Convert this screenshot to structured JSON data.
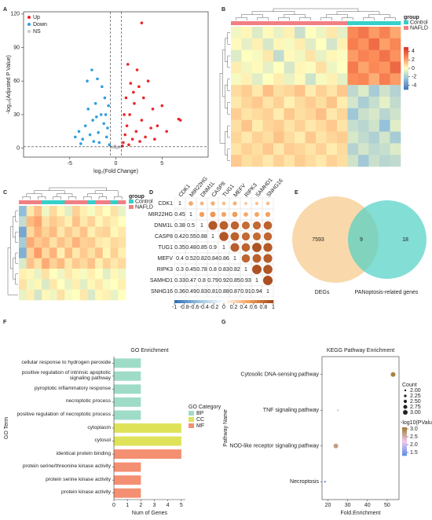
{
  "chart_data": [
    {
      "panel": "A",
      "type": "scatter",
      "xlabel": "log₂(Fold Change)",
      "ylabel": "-log₁₀(Adjusted P Value)",
      "xlim": [
        -10,
        10
      ],
      "ylim": [
        -8,
        122
      ],
      "xticks": [
        -5,
        0,
        5
      ],
      "yticks": [
        0,
        30,
        60,
        90,
        120
      ],
      "thresholds_x": [
        -0.58,
        0.58
      ],
      "threshold_y": 1.3,
      "legend": "top-left",
      "series": [
        {
          "name": "Up",
          "color": "#e8262a",
          "x": [
            0.8,
            1,
            1.2,
            1.5,
            1.8,
            2,
            2.2,
            2.5,
            2.8,
            3,
            3.2,
            3.5,
            4,
            4.5,
            5,
            5.5,
            6.8,
            7,
            2.8,
            1.3,
            1.6,
            2.3,
            0.9,
            1.1,
            3.8,
            0.7,
            1.4,
            2.6,
            1.9,
            4.2
          ],
          "values": [
            5,
            12,
            20,
            30,
            8,
            40,
            15,
            55,
            25,
            45,
            10,
            60,
            35,
            20,
            38,
            15,
            26,
            25,
            112,
            75,
            58,
            70,
            30,
            45,
            18,
            2,
            3,
            6,
            50,
            8
          ]
        },
        {
          "name": "Down",
          "color": "#2f9ee0",
          "x": [
            -0.7,
            -1,
            -1.3,
            -1.6,
            -1.9,
            -2.2,
            -2.5,
            -2.8,
            -3,
            -3.3,
            -3.6,
            -4,
            -1.2,
            -1.5,
            -2,
            -2.6,
            -3.1,
            -1.8,
            -0.9,
            -2.4,
            -3.8,
            -1.1,
            -4.4,
            -2.1,
            -0.8
          ],
          "values": [
            3,
            10,
            22,
            30,
            14,
            40,
            25,
            12,
            35,
            20,
            8,
            15,
            45,
            55,
            62,
            70,
            60,
            5,
            18,
            6,
            4,
            30,
            10,
            28,
            38
          ]
        },
        {
          "name": "NS",
          "color": "#c9c9c9",
          "x": [
            -0.3,
            0.2,
            -0.1,
            0.4,
            0,
            -0.5,
            0.3
          ],
          "values": [
            1,
            0.5,
            2,
            1,
            0.3,
            0.8,
            1.1
          ]
        }
      ]
    },
    {
      "panel": "B",
      "type": "heatmap",
      "legend_title": "group",
      "groups": [
        {
          "name": "Control",
          "color": "#35d0c8"
        },
        {
          "name": "NAFLD",
          "color": "#f07f83"
        }
      ],
      "column_groups": [
        1,
        1,
        1,
        1,
        1,
        1,
        1,
        1,
        1,
        1,
        1,
        0,
        0,
        0,
        0,
        0
      ],
      "colors": [
        "#4575b4",
        "#91bfdb",
        "#ffffbf",
        "#fc8d59",
        "#d73027"
      ],
      "clim": [
        -5,
        5
      ],
      "colorbar_ticks": [
        4,
        2,
        0,
        -2,
        -4
      ],
      "matrix": [
        [
          -0.3,
          0.2,
          -0.8,
          0.1,
          -0.5,
          0.3,
          -1.2,
          0,
          -0.4,
          0.5,
          -0.6,
          2.6,
          3.1,
          2.2,
          2.8,
          1.9
        ],
        [
          0.1,
          -0.6,
          0.3,
          -0.9,
          0.2,
          -0.2,
          0.4,
          -0.7,
          0,
          -1,
          0.3,
          2.9,
          2.4,
          3.4,
          2.1,
          2.7
        ],
        [
          -0.8,
          0,
          -0.2,
          0.5,
          -1.4,
          0.1,
          -0.3,
          0.6,
          -0.5,
          0.2,
          -0.1,
          2.2,
          2.8,
          2.5,
          3.2,
          2.4
        ],
        [
          0.4,
          -0.3,
          0.1,
          -0.6,
          0,
          -0.9,
          0.2,
          -0.1,
          0.7,
          -0.4,
          0,
          3,
          2,
          2.6,
          2.3,
          3.5
        ],
        [
          -0.2,
          0.3,
          -0.7,
          0,
          0.4,
          -0.5,
          0.1,
          -1.1,
          -0.2,
          0.3,
          -0.6,
          2.5,
          2.7,
          1.8,
          2.9,
          2.2
        ],
        [
          0.8,
          1.1,
          0.5,
          1.4,
          0.7,
          0.9,
          1.3,
          0.4,
          1,
          0.6,
          1.2,
          -1.5,
          -0.8,
          -2,
          -1.1,
          -1.7
        ],
        [
          0.5,
          0.9,
          1.2,
          0.6,
          1,
          0.3,
          0.8,
          1.1,
          0.7,
          1.3,
          0.4,
          -1,
          -1.9,
          -1.3,
          -0.6,
          -1.4
        ],
        [
          1.1,
          0.6,
          0.8,
          1,
          0.4,
          1.2,
          0.7,
          0.9,
          1.4,
          0.5,
          0.9,
          -2.2,
          -1.2,
          -0.9,
          -1.6,
          -1.1
        ],
        [
          0.7,
          1.3,
          0.4,
          0.9,
          1.1,
          0.6,
          1,
          0.5,
          0.8,
          1.2,
          0.6,
          -1.3,
          -1.6,
          -1.1,
          -2.4,
          -0.7
        ],
        [
          0.9,
          0.5,
          1,
          0.7,
          1.3,
          0.8,
          0.4,
          1.2,
          0.6,
          0.9,
          1.1,
          -0.9,
          -1.4,
          -1.8,
          -1,
          -2
        ],
        [
          0.6,
          1,
          0.7,
          1.2,
          0.5,
          1.1,
          0.9,
          0.6,
          1,
          0.4,
          0.8,
          -1.7,
          -1,
          -1.5,
          -1.3,
          -0.8
        ],
        [
          1.2,
          0.7,
          0.9,
          0.5,
          1,
          0.6,
          1.1,
          0.8,
          0.5,
          1,
          0.7,
          -1.1,
          -2.1,
          -1.2,
          -1.6,
          -1.4
        ]
      ]
    },
    {
      "panel": "C",
      "type": "heatmap",
      "legend_title": "group",
      "groups": [
        {
          "name": "Control",
          "color": "#35d0c8"
        },
        {
          "name": "NAFLD",
          "color": "#f07f83"
        }
      ],
      "column_groups": [
        1,
        1,
        1,
        0,
        0,
        0,
        1,
        1,
        1,
        0,
        1,
        1,
        0,
        1
      ],
      "colors": [
        "#4575b4",
        "#91bfdb",
        "#ffffbf",
        "#fc8d59",
        "#d73027"
      ],
      "clim": [
        -3,
        3
      ],
      "matrix": [
        [
          -1.5,
          0.3,
          0.8,
          -0.2,
          0.5,
          0.1,
          -0.4,
          0.6,
          0.2,
          -0.1,
          0.3,
          0,
          0.4,
          -0.3
        ],
        [
          -0.8,
          0.9,
          1.2,
          0.4,
          0.7,
          0.5,
          0.2,
          0.8,
          0.3,
          0.6,
          0.1,
          0.4,
          0.2,
          0
        ],
        [
          -2,
          0.5,
          1,
          0.6,
          0.9,
          0.3,
          0.7,
          0.4,
          0.8,
          0.2,
          0.5,
          0.6,
          0.1,
          0.3
        ],
        [
          -1.2,
          1.1,
          0.7,
          0.9,
          0.4,
          0.8,
          0.5,
          1,
          0.6,
          0.7,
          0.3,
          0.2,
          0.5,
          0.4
        ],
        [
          -1.8,
          0.6,
          1.3,
          0.5,
          1,
          0.2,
          0.9,
          0.3,
          0.7,
          0.4,
          0.8,
          0.1,
          0.6,
          0.2
        ],
        [
          -0.5,
          0.8,
          0.4,
          1.1,
          0.6,
          0.9,
          0.3,
          0.7,
          0.5,
          0.8,
          0.2,
          0.6,
          0.3,
          0.5
        ],
        [
          0.2,
          0.1,
          -0.3,
          0.4,
          0,
          -0.2,
          0.3,
          0.1,
          -0.1,
          0.2,
          0,
          -0.4,
          0.1,
          -0.2
        ],
        [
          0.4,
          -0.2,
          0.1,
          -0.5,
          0.3,
          0,
          -0.3,
          0.2,
          -0.4,
          0.1,
          0.3,
          -0.1,
          0,
          0.2
        ],
        [
          -0.3,
          0.2,
          -0.6,
          0.1,
          -0.2,
          0.4,
          -0.1,
          0,
          0.3,
          -0.5,
          0.1,
          0.2,
          -0.3,
          0
        ]
      ]
    },
    {
      "panel": "D",
      "type": "corrplot",
      "labels": [
        "CDK1",
        "MIR22HG",
        "DNM1L",
        "CASP8",
        "TUG1",
        "MEFV",
        "RIPK3",
        "SAMHD1",
        "SNHG16"
      ],
      "colors": [
        "#2c6fb4",
        "#9cc3e0",
        "#ffffff",
        "#f4a05a",
        "#a0441a"
      ],
      "clim": [
        -1,
        1
      ],
      "colorbar_ticks": [
        -1,
        -0.8,
        -0.6,
        -0.4,
        -0.2,
        0,
        0.2,
        0.4,
        0.6,
        0.8,
        1
      ],
      "matrix": [
        [
          1,
          0.45,
          0.38,
          0.42,
          0.35,
          0.4,
          0.3,
          0.33,
          0.36
        ],
        [
          0.45,
          1,
          0.5,
          0.55,
          0.48,
          0.52,
          0.45,
          0.47,
          0.49
        ],
        [
          0.38,
          0.5,
          1,
          0.88,
          0.85,
          0.82,
          0.78,
          0.8,
          0.83
        ],
        [
          0.42,
          0.55,
          0.88,
          1,
          0.9,
          0.84,
          0.8,
          0.79,
          0.81
        ],
        [
          0.35,
          0.48,
          0.85,
          0.9,
          1,
          0.86,
          0.83,
          0.92,
          0.88
        ],
        [
          0.4,
          0.52,
          0.82,
          0.84,
          0.86,
          1,
          0.82,
          0.85,
          0.87
        ],
        [
          0.3,
          0.45,
          0.78,
          0.8,
          0.83,
          0.82,
          1,
          0.93,
          0.91
        ],
        [
          0.33,
          0.47,
          0.8,
          0.79,
          0.92,
          0.85,
          0.93,
          1,
          0.94
        ],
        [
          0.36,
          0.49,
          0.83,
          0.81,
          0.88,
          0.87,
          0.91,
          0.94,
          1
        ]
      ]
    },
    {
      "panel": "E",
      "type": "venn",
      "sets": [
        {
          "name": "DEGs",
          "color": "#f6c987"
        },
        {
          "name": "PANoptosis-related genes",
          "color": "#4fd0c4"
        }
      ],
      "values": [
        7593,
        9,
        18
      ]
    },
    {
      "panel": "F",
      "type": "bar",
      "title": "GO Enrichment",
      "xlabel": "Num of Genes",
      "ylabel": "GO Term",
      "legend_title": "GO Category",
      "groups": [
        {
          "name": "BP",
          "color": "#9fdcc8"
        },
        {
          "name": "CC",
          "color": "#dfe35a"
        },
        {
          "name": "MF",
          "color": "#f48f72"
        }
      ],
      "categories": [
        "cellular response to hydrogen peroxide",
        "positive regulation of intrinsic apoptotic signaling pathway",
        "pyroptotic inflammatory response",
        "necroptotic process",
        "positive regulation of necroptotic process",
        "cytoplasm",
        "cytosol",
        "identical protein binding",
        "protein serine/threonine kinase activity",
        "protein serine kinase activity",
        "protein kinase activity"
      ],
      "category_groups": [
        0,
        0,
        0,
        0,
        0,
        1,
        1,
        2,
        2,
        2,
        2
      ],
      "values": [
        2,
        2,
        2,
        2,
        2,
        5,
        5,
        5,
        2,
        2,
        2
      ],
      "xlim": [
        0,
        5.3
      ],
      "xticks": [
        0,
        1,
        2,
        3,
        4,
        5
      ]
    },
    {
      "panel": "G",
      "type": "bubble",
      "title": "KEGG Pathway Enrichment",
      "xlabel": "Fold.Enrichment",
      "ylabel": "Pathway Name",
      "categories": [
        "Cytosolic DNA-sensing pathway",
        "TNF signaling pathway",
        "NOD-like receptor signaling pathway",
        "Necroptosis"
      ],
      "values": [
        53,
        25,
        24,
        18.5
      ],
      "sizes": [
        3,
        2,
        3,
        2
      ],
      "color_values": [
        3,
        2.1,
        2.7,
        1.4
      ],
      "xlim": [
        17,
        56
      ],
      "xticks": [
        20,
        30,
        40,
        50
      ],
      "size_title": "Count",
      "size_legend": [
        {
          "value": 2,
          "label": "2.00"
        },
        2.25,
        {
          "value": 2.5,
          "label": "2.50"
        },
        2.75,
        {
          "value": 3,
          "label": "3.00"
        }
      ],
      "color_title": "-log10(PValue)",
      "colors": [
        "#5b8ee6",
        "#f3c8ef",
        "#9e7a2a"
      ],
      "clim": [
        1.3,
        3.1
      ],
      "color_ticks": [
        {
          "value": 3,
          "label": "3.0"
        },
        2.5,
        {
          "value": 2,
          "label": "2.0"
        },
        1.5
      ]
    }
  ]
}
